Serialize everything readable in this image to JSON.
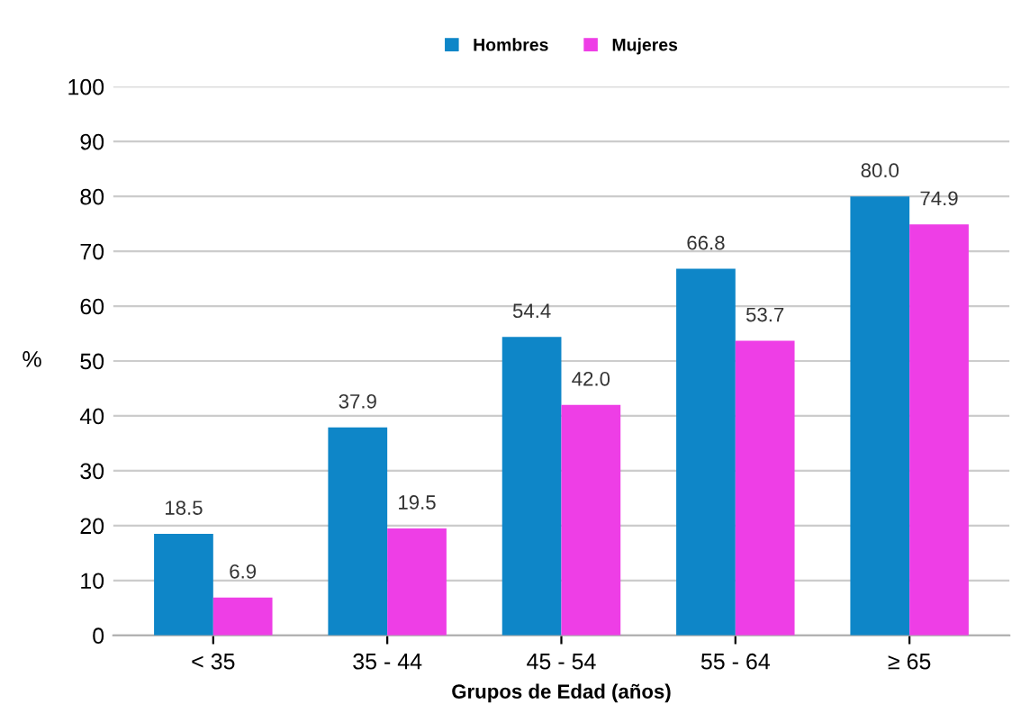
{
  "chart_data": {
    "type": "bar",
    "xlabel": "Grupos de Edad (años)",
    "ylabel": "%",
    "categories": [
      "< 35",
      "35 - 44",
      "45 - 54",
      "55 - 64",
      "≥ 65"
    ],
    "series": [
      {
        "name": "Hombres",
        "color": "#0e86c8",
        "values": [
          18.5,
          37.9,
          54.4,
          66.8,
          80.0
        ],
        "value_labels": [
          "18.5",
          "37.9",
          "54.4",
          "66.8",
          "80.0"
        ]
      },
      {
        "name": "Mujeres",
        "color": "#ee3ee6",
        "values": [
          6.9,
          19.5,
          42.0,
          53.7,
          74.9
        ],
        "value_labels": [
          "6.9",
          "19.5",
          "42.0",
          "53.7",
          "74.9"
        ]
      }
    ],
    "ylim": [
      0,
      100
    ],
    "yticks": [
      0,
      10,
      20,
      30,
      40,
      50,
      60,
      70,
      80,
      90,
      100
    ],
    "grid": "y",
    "legend": "top"
  }
}
